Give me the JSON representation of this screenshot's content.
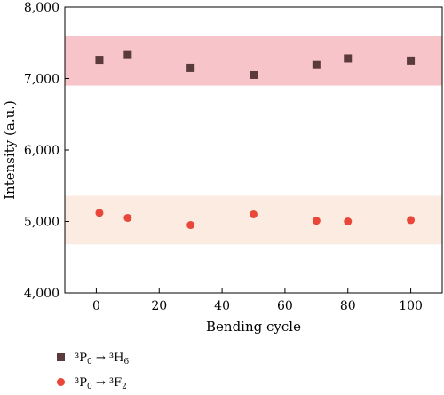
{
  "chart_data": {
    "type": "scatter",
    "xlabel": "Bending cycle",
    "ylabel": "Intensity (a.u.)",
    "xlim": [
      -10,
      110
    ],
    "ylim": [
      4000,
      8000
    ],
    "x_ticks": [
      0,
      20,
      40,
      60,
      80,
      100
    ],
    "y_ticks": [
      4000,
      5000,
      6000,
      7000,
      8000
    ],
    "x_tick_labels": [
      "0",
      "20",
      "40",
      "60",
      "80",
      "100"
    ],
    "y_tick_labels": [
      "4,000",
      "5,000",
      "6,000",
      "7,000",
      "8,000"
    ],
    "grid": false,
    "legend_position": "below-left",
    "bands": [
      {
        "y0": 6900,
        "y1": 7600,
        "color": "#f7c4c9"
      },
      {
        "y0": 4680,
        "y1": 5360,
        "color": "#fcebe1"
      }
    ],
    "series": [
      {
        "legend_prefix": "³P",
        "legend_sub1": "0",
        "legend_arrow": "→",
        "legend_mid": "³H",
        "legend_sub2": "6",
        "marker": "square",
        "color": "#5a3a3a",
        "x": [
          1,
          10,
          30,
          50,
          70,
          80,
          100
        ],
        "y": [
          7260,
          7340,
          7150,
          7050,
          7190,
          7280,
          7250
        ]
      },
      {
        "legend_prefix": "³P",
        "legend_sub1": "0",
        "legend_arrow": "→",
        "legend_mid": "³F",
        "legend_sub2": "2",
        "marker": "circle",
        "color": "#e8473a",
        "x": [
          1,
          10,
          30,
          50,
          70,
          80,
          100
        ],
        "y": [
          5120,
          5050,
          4950,
          5100,
          5010,
          5000,
          5020
        ]
      }
    ]
  }
}
